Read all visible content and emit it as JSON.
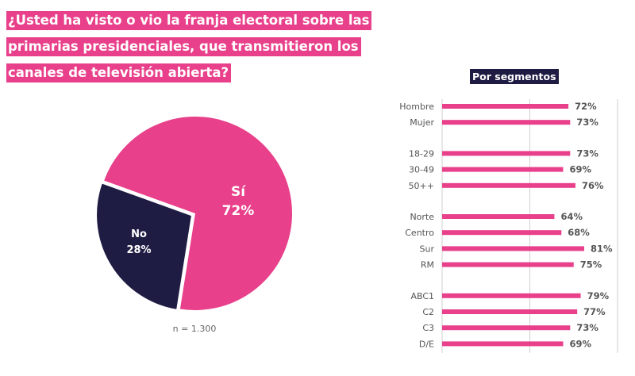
{
  "title": {
    "lines": [
      "¿Usted ha visto o vio la franja electoral sobre las",
      "primarias presidenciales, que transmitieron los",
      "canales de televisión abierta?"
    ]
  },
  "colors": {
    "pink": "#e8408a",
    "navy": "#1f1c44",
    "gray_text": "#555555",
    "grid": "#cfcfcf"
  },
  "sample": "n = 1.300",
  "segments_title": "Por segmentos",
  "chart_data": [
    {
      "type": "pie",
      "title": "",
      "slices": [
        {
          "label": "Sí",
          "value": 72,
          "display": "72%",
          "color": "#e8408a"
        },
        {
          "label": "No",
          "value": 28,
          "display": "28%",
          "color": "#1f1c44",
          "exploded": true
        }
      ],
      "note": "n = 1.300"
    },
    {
      "type": "bar",
      "orientation": "horizontal",
      "title": "Por segmentos",
      "xlim": [
        0,
        100
      ],
      "grid": true,
      "gridlines": [
        0,
        50,
        100
      ],
      "groups": [
        {
          "categories": [
            "Hombre",
            "Mujer"
          ],
          "values": [
            72,
            73
          ]
        },
        {
          "categories": [
            "18-29",
            "30-49",
            "50++"
          ],
          "values": [
            73,
            69,
            76
          ]
        },
        {
          "categories": [
            "Norte",
            "Centro",
            "Sur",
            "RM"
          ],
          "values": [
            64,
            68,
            81,
            75
          ]
        },
        {
          "categories": [
            "ABC1",
            "C2",
            "C3",
            "D/E"
          ],
          "values": [
            79,
            77,
            73,
            69
          ]
        }
      ],
      "value_suffix": "%"
    }
  ]
}
